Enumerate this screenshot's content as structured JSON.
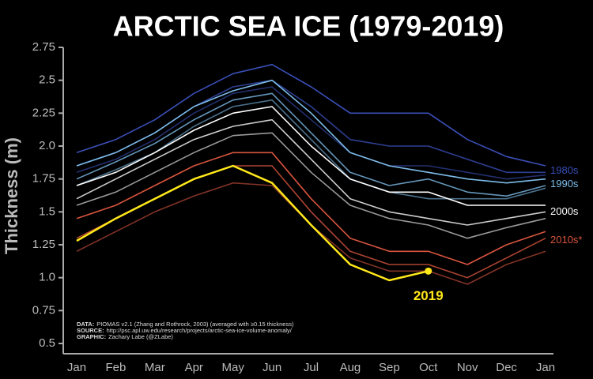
{
  "chart_data": {
    "type": "line",
    "title": "ARCTIC SEA ICE (1979-2019)",
    "y_label": "Thickness (m)",
    "categories": [
      "Jan",
      "Feb",
      "Mar",
      "Apr",
      "May",
      "Jun",
      "Jul",
      "Aug",
      "Sep",
      "Oct",
      "Nov",
      "Dec",
      "Jan"
    ],
    "ylim": [
      0.5,
      2.75
    ],
    "yticks": [
      0.5,
      0.75,
      {
        "value": 1,
        "label": "1.0"
      },
      1.25,
      1.5,
      1.75,
      {
        "value": 2,
        "label": "2.0"
      },
      2.25,
      2.5,
      2.75
    ],
    "series": [
      {
        "name": "1980s",
        "color": "#3a4fb8",
        "lines": [
          [
            1.95,
            2.05,
            2.2,
            2.4,
            2.55,
            2.62,
            2.45,
            2.25,
            2.25,
            2.25,
            2.05,
            1.92,
            1.85
          ],
          [
            1.85,
            1.95,
            2.1,
            2.3,
            2.45,
            2.5,
            2.3,
            2.05,
            2.0,
            2.0,
            1.9,
            1.8,
            1.8
          ],
          [
            1.8,
            1.9,
            2.05,
            2.25,
            2.4,
            2.45,
            2.2,
            1.95,
            1.85,
            1.85,
            1.8,
            1.75,
            1.78
          ]
        ]
      },
      {
        "name": "1990s",
        "color": "#7dbce8",
        "lines": [
          [
            1.85,
            1.95,
            2.1,
            2.3,
            2.42,
            2.5,
            2.25,
            1.95,
            1.85,
            1.8,
            1.75,
            1.72,
            1.75
          ],
          [
            1.75,
            1.88,
            2.02,
            2.2,
            2.35,
            2.4,
            2.1,
            1.8,
            1.7,
            1.75,
            1.65,
            1.62,
            1.7
          ],
          [
            1.7,
            1.82,
            1.95,
            2.15,
            2.3,
            2.35,
            2.05,
            1.75,
            1.65,
            1.6,
            1.6,
            1.6,
            1.68
          ]
        ]
      },
      {
        "name": "2000s",
        "color": "#ffffff",
        "lines": [
          [
            1.7,
            1.8,
            1.95,
            2.12,
            2.25,
            2.3,
            2.0,
            1.75,
            1.65,
            1.65,
            1.55,
            1.55,
            1.55
          ],
          [
            1.6,
            1.75,
            1.9,
            2.05,
            2.15,
            2.2,
            1.9,
            1.6,
            1.5,
            1.45,
            1.4,
            1.45,
            1.5
          ],
          [
            1.55,
            1.65,
            1.8,
            1.95,
            2.08,
            2.1,
            1.8,
            1.55,
            1.45,
            1.4,
            1.3,
            1.38,
            1.45
          ]
        ]
      },
      {
        "name": "2010s*",
        "color": "#d9553f",
        "lines": [
          [
            1.45,
            1.55,
            1.7,
            1.85,
            1.95,
            1.95,
            1.6,
            1.3,
            1.2,
            1.2,
            1.1,
            1.25,
            1.35
          ],
          [
            1.3,
            1.45,
            1.6,
            1.75,
            1.85,
            1.85,
            1.5,
            1.2,
            1.1,
            1.1,
            1.0,
            1.15,
            1.3
          ],
          [
            1.2,
            1.35,
            1.5,
            1.62,
            1.72,
            1.7,
            1.4,
            1.15,
            1.05,
            1.05,
            0.95,
            1.1,
            1.2
          ]
        ]
      },
      {
        "name": "2019",
        "color": "#ffe81a",
        "lines": [
          [
            1.28,
            1.45,
            1.6,
            1.75,
            1.85,
            1.72,
            1.4,
            1.1,
            0.98,
            1.05,
            null,
            null,
            null
          ]
        ]
      }
    ],
    "notes": [
      {
        "label": "DATA:",
        "text": "PIOMAS v2.1 (Zhang and Rothrock, 2003) (averaged with ≥0.15 thickness)"
      },
      {
        "label": "SOURCE:",
        "text": "http://psc.apl.uw.edu/research/projects/arctic-sea-ice-volume-anomaly/"
      },
      {
        "label": "GRAPHIC:",
        "text": "Zachary Labe (@ZLabe)"
      }
    ]
  }
}
